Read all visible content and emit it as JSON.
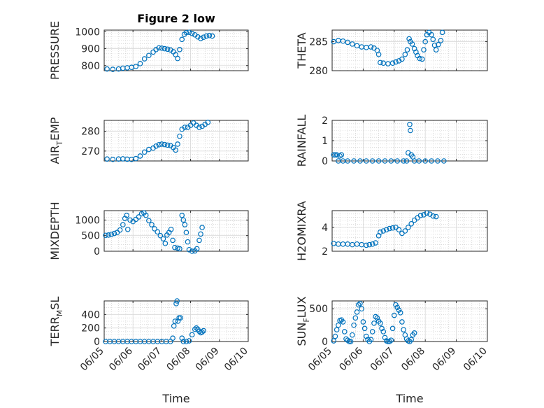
{
  "figure_title": "Figure 2 low",
  "colors": {
    "marker": "#0072BD",
    "axis": "#262626",
    "grid": "#c8c8c8",
    "background": "#ffffff"
  },
  "chart_data": [
    {
      "type": "scatter",
      "panel": "top-left",
      "ylabel_main": "PRESSURE",
      "ylabel_sub": "",
      "xlim": [
        "06/05",
        "06/10"
      ],
      "ylim": [
        770,
        1010
      ],
      "yticks": [
        800,
        900,
        1000
      ],
      "xtick_labels": [],
      "xlabel": "",
      "title": "Figure 2 low",
      "grid": "on",
      "points": [
        [
          5.1,
          780
        ],
        [
          5.3,
          778
        ],
        [
          5.5,
          780
        ],
        [
          5.65,
          785
        ],
        [
          5.8,
          787
        ],
        [
          5.95,
          790
        ],
        [
          6.1,
          795
        ],
        [
          6.25,
          812
        ],
        [
          6.4,
          840
        ],
        [
          6.55,
          860
        ],
        [
          6.7,
          880
        ],
        [
          6.8,
          895
        ],
        [
          6.9,
          905
        ],
        [
          7.0,
          903
        ],
        [
          7.1,
          900
        ],
        [
          7.2,
          897
        ],
        [
          7.3,
          893
        ],
        [
          7.4,
          882
        ],
        [
          7.48,
          865
        ],
        [
          7.55,
          842
        ],
        [
          7.62,
          895
        ],
        [
          7.7,
          955
        ],
        [
          7.78,
          985
        ],
        [
          7.85,
          995
        ],
        [
          7.95,
          997
        ],
        [
          8.05,
          990
        ],
        [
          8.15,
          982
        ],
        [
          8.25,
          970
        ],
        [
          8.35,
          960
        ],
        [
          8.45,
          968
        ],
        [
          8.55,
          975
        ],
        [
          8.65,
          978
        ],
        [
          8.75,
          975
        ]
      ]
    },
    {
      "type": "scatter",
      "panel": "top-right",
      "ylabel_main": "THETA",
      "ylabel_sub": "",
      "xlim": [
        "06/05",
        "06/10"
      ],
      "ylim": [
        280,
        287
      ],
      "yticks": [
        280,
        285
      ],
      "xtick_labels": [],
      "xlabel": "",
      "title": "",
      "grid": "on",
      "points": [
        [
          5.05,
          285.0
        ],
        [
          5.2,
          285.2
        ],
        [
          5.35,
          285.1
        ],
        [
          5.5,
          284.9
        ],
        [
          5.65,
          284.6
        ],
        [
          5.8,
          284.3
        ],
        [
          5.95,
          284.1
        ],
        [
          6.1,
          284.0
        ],
        [
          6.25,
          284.1
        ],
        [
          6.35,
          283.9
        ],
        [
          6.45,
          283.5
        ],
        [
          6.5,
          282.8
        ],
        [
          6.55,
          281.4
        ],
        [
          6.65,
          281.3
        ],
        [
          6.8,
          281.2
        ],
        [
          6.95,
          281.3
        ],
        [
          7.05,
          281.5
        ],
        [
          7.15,
          281.7
        ],
        [
          7.25,
          282.0
        ],
        [
          7.35,
          282.8
        ],
        [
          7.42,
          283.6
        ],
        [
          7.48,
          285.5
        ],
        [
          7.52,
          285.0
        ],
        [
          7.58,
          284.6
        ],
        [
          7.65,
          283.8
        ],
        [
          7.7,
          283.2
        ],
        [
          7.75,
          282.6
        ],
        [
          7.82,
          282.1
        ],
        [
          7.9,
          282.0
        ],
        [
          7.95,
          283.6
        ],
        [
          8.0,
          285.0
        ],
        [
          8.05,
          286.2
        ],
        [
          8.12,
          286.6
        ],
        [
          8.2,
          286.2
        ],
        [
          8.25,
          285.4
        ],
        [
          8.3,
          284.4
        ],
        [
          8.35,
          283.6
        ],
        [
          8.42,
          284.5
        ],
        [
          8.5,
          285.2
        ],
        [
          8.55,
          286.6
        ]
      ]
    },
    {
      "type": "scatter",
      "panel": "second-left",
      "ylabel_main": "AIR",
      "ylabel_sub": "T",
      "ylabel_tail": "EMP",
      "xlim": [
        "06/05",
        "06/10"
      ],
      "ylim": [
        265,
        285.5
      ],
      "yticks": [
        270,
        280
      ],
      "xtick_labels": [],
      "xlabel": "",
      "title": "",
      "grid": "on",
      "points": [
        [
          5.1,
          266.0
        ],
        [
          5.3,
          265.8
        ],
        [
          5.5,
          266.0
        ],
        [
          5.65,
          266.1
        ],
        [
          5.8,
          265.9
        ],
        [
          5.95,
          265.8
        ],
        [
          6.1,
          266.2
        ],
        [
          6.25,
          267.5
        ],
        [
          6.4,
          269.5
        ],
        [
          6.55,
          270.8
        ],
        [
          6.7,
          271.5
        ],
        [
          6.8,
          272.5
        ],
        [
          6.9,
          273.2
        ],
        [
          7.0,
          273.5
        ],
        [
          7.1,
          273.3
        ],
        [
          7.2,
          273.0
        ],
        [
          7.3,
          272.8
        ],
        [
          7.4,
          271.8
        ],
        [
          7.48,
          270.5
        ],
        [
          7.55,
          273.5
        ],
        [
          7.62,
          277.5
        ],
        [
          7.7,
          281.0
        ],
        [
          7.8,
          282.0
        ],
        [
          7.9,
          282.0
        ],
        [
          8.0,
          283.0
        ],
        [
          8.1,
          284.2
        ],
        [
          8.2,
          283.0
        ],
        [
          8.3,
          282.0
        ],
        [
          8.4,
          282.5
        ],
        [
          8.5,
          283.5
        ],
        [
          8.6,
          284.5
        ]
      ]
    },
    {
      "type": "scatter",
      "panel": "second-right",
      "ylabel_main": "RAINFALL",
      "ylabel_sub": "",
      "xlim": [
        "06/05",
        "06/10"
      ],
      "ylim": [
        0,
        2
      ],
      "yticks": [
        0,
        1,
        2
      ],
      "xtick_labels": [],
      "xlabel": "",
      "title": "",
      "grid": "on",
      "points": [
        [
          5.05,
          0.3
        ],
        [
          5.1,
          0.3
        ],
        [
          5.15,
          0.3
        ],
        [
          5.2,
          0.0
        ],
        [
          5.25,
          0.25
        ],
        [
          5.3,
          0.3
        ],
        [
          5.35,
          0.0
        ],
        [
          5.5,
          0.0
        ],
        [
          5.7,
          0.0
        ],
        [
          5.9,
          0.0
        ],
        [
          6.1,
          0.0
        ],
        [
          6.3,
          0.0
        ],
        [
          6.5,
          0.0
        ],
        [
          6.7,
          0.0
        ],
        [
          6.9,
          0.0
        ],
        [
          7.1,
          0.0
        ],
        [
          7.3,
          0.0
        ],
        [
          7.4,
          0.0
        ],
        [
          7.45,
          0.4
        ],
        [
          7.5,
          1.8
        ],
        [
          7.52,
          1.5
        ],
        [
          7.55,
          0.3
        ],
        [
          7.6,
          0.2
        ],
        [
          7.65,
          0.0
        ],
        [
          7.8,
          0.0
        ],
        [
          8.0,
          0.0
        ],
        [
          8.2,
          0.0
        ],
        [
          8.4,
          0.0
        ],
        [
          8.6,
          0.0
        ]
      ]
    },
    {
      "type": "scatter",
      "panel": "third-left",
      "ylabel_main": "MIXDEPTH",
      "ylabel_sub": "",
      "xlim": [
        "06/05",
        "06/10"
      ],
      "ylim": [
        0,
        1300
      ],
      "yticks": [
        0,
        500,
        1000
      ],
      "xtick_labels": [],
      "xlabel": "",
      "title": "",
      "grid": "on",
      "points": [
        [
          5.05,
          510
        ],
        [
          5.15,
          520
        ],
        [
          5.25,
          540
        ],
        [
          5.35,
          570
        ],
        [
          5.45,
          600
        ],
        [
          5.55,
          680
        ],
        [
          5.65,
          850
        ],
        [
          5.72,
          1050
        ],
        [
          5.78,
          1150
        ],
        [
          5.82,
          700
        ],
        [
          5.9,
          1000
        ],
        [
          6.0,
          950
        ],
        [
          6.1,
          1020
        ],
        [
          6.2,
          1100
        ],
        [
          6.3,
          1200
        ],
        [
          6.38,
          1230
        ],
        [
          6.45,
          1150
        ],
        [
          6.55,
          980
        ],
        [
          6.65,
          850
        ],
        [
          6.75,
          720
        ],
        [
          6.85,
          620
        ],
        [
          6.95,
          500
        ],
        [
          7.05,
          400
        ],
        [
          7.12,
          250
        ],
        [
          7.18,
          520
        ],
        [
          7.25,
          600
        ],
        [
          7.32,
          700
        ],
        [
          7.38,
          350
        ],
        [
          7.45,
          120
        ],
        [
          7.55,
          100
        ],
        [
          7.62,
          80
        ],
        [
          7.7,
          1150
        ],
        [
          7.75,
          1000
        ],
        [
          7.8,
          850
        ],
        [
          7.85,
          600
        ],
        [
          7.9,
          300
        ],
        [
          7.95,
          50
        ],
        [
          8.05,
          0
        ],
        [
          8.15,
          10
        ],
        [
          8.22,
          80
        ],
        [
          8.3,
          350
        ],
        [
          8.35,
          550
        ],
        [
          8.4,
          760
        ]
      ]
    },
    {
      "type": "scatter",
      "panel": "third-right",
      "ylabel_main": "H2OMIXRA",
      "ylabel_sub": "",
      "xlim": [
        "06/05",
        "06/10"
      ],
      "ylim": [
        2,
        5.4
      ],
      "yticks": [
        2,
        4
      ],
      "xtick_labels": [],
      "xlabel": "",
      "title": "",
      "grid": "on",
      "points": [
        [
          5.05,
          2.65
        ],
        [
          5.2,
          2.6
        ],
        [
          5.35,
          2.6
        ],
        [
          5.5,
          2.6
        ],
        [
          5.65,
          2.55
        ],
        [
          5.8,
          2.6
        ],
        [
          5.95,
          2.55
        ],
        [
          6.1,
          2.5
        ],
        [
          6.2,
          2.55
        ],
        [
          6.3,
          2.6
        ],
        [
          6.4,
          2.7
        ],
        [
          6.5,
          3.3
        ],
        [
          6.55,
          3.6
        ],
        [
          6.65,
          3.7
        ],
        [
          6.75,
          3.8
        ],
        [
          6.85,
          3.9
        ],
        [
          6.95,
          3.95
        ],
        [
          7.05,
          4.0
        ],
        [
          7.15,
          3.8
        ],
        [
          7.25,
          3.5
        ],
        [
          7.35,
          3.7
        ],
        [
          7.45,
          4.0
        ],
        [
          7.55,
          4.3
        ],
        [
          7.65,
          4.6
        ],
        [
          7.75,
          4.8
        ],
        [
          7.85,
          5.0
        ],
        [
          7.95,
          5.05
        ],
        [
          8.05,
          5.2
        ],
        [
          8.15,
          5.1
        ],
        [
          8.25,
          4.95
        ],
        [
          8.35,
          4.9
        ]
      ]
    },
    {
      "type": "scatter",
      "panel": "bottom-left",
      "ylabel_main": "TERR",
      "ylabel_sub": "M",
      "ylabel_tail": "SL",
      "xlim": [
        "06/05",
        "06/10"
      ],
      "ylim": [
        0,
        600
      ],
      "yticks": [
        0,
        200,
        400
      ],
      "xtick_labels": [
        "06/05",
        "06/06",
        "06/07",
        "06/08",
        "06/09",
        "06/10"
      ],
      "xlabel": "Time",
      "title": "",
      "grid": "on",
      "points": [
        [
          5.05,
          0
        ],
        [
          5.2,
          0
        ],
        [
          5.35,
          0
        ],
        [
          5.5,
          0
        ],
        [
          5.65,
          0
        ],
        [
          5.8,
          0
        ],
        [
          5.95,
          0
        ],
        [
          6.1,
          0
        ],
        [
          6.25,
          0
        ],
        [
          6.4,
          0
        ],
        [
          6.55,
          0
        ],
        [
          6.7,
          0
        ],
        [
          6.85,
          0
        ],
        [
          7.0,
          0
        ],
        [
          7.15,
          0
        ],
        [
          7.3,
          0
        ],
        [
          7.38,
          50
        ],
        [
          7.42,
          230
        ],
        [
          7.46,
          300
        ],
        [
          7.5,
          560
        ],
        [
          7.53,
          600
        ],
        [
          7.56,
          300
        ],
        [
          7.6,
          350
        ],
        [
          7.65,
          350
        ],
        [
          7.7,
          50
        ],
        [
          7.75,
          0
        ],
        [
          7.85,
          0
        ],
        [
          7.95,
          10
        ],
        [
          8.05,
          100
        ],
        [
          8.15,
          180
        ],
        [
          8.2,
          200
        ],
        [
          8.25,
          180
        ],
        [
          8.3,
          150
        ],
        [
          8.35,
          130
        ],
        [
          8.4,
          140
        ],
        [
          8.45,
          160
        ]
      ]
    },
    {
      "type": "scatter",
      "panel": "bottom-right",
      "ylabel_main": "SUN",
      "ylabel_sub": "F",
      "ylabel_tail": "LUX",
      "xlim": [
        "06/05",
        "06/10"
      ],
      "ylim": [
        0,
        620
      ],
      "yticks": [
        0,
        500
      ],
      "xtick_labels": [
        "06/05",
        "06/06",
        "06/07",
        "06/08",
        "06/09",
        "06/10"
      ],
      "xlabel": "Time",
      "title": "",
      "grid": "on",
      "points": [
        [
          5.05,
          10
        ],
        [
          5.1,
          80
        ],
        [
          5.15,
          180
        ],
        [
          5.2,
          250
        ],
        [
          5.25,
          320
        ],
        [
          5.3,
          330
        ],
        [
          5.35,
          300
        ],
        [
          5.4,
          150
        ],
        [
          5.45,
          40
        ],
        [
          5.5,
          20
        ],
        [
          5.55,
          0
        ],
        [
          5.6,
          0
        ],
        [
          5.65,
          100
        ],
        [
          5.7,
          250
        ],
        [
          5.75,
          360
        ],
        [
          5.8,
          450
        ],
        [
          5.85,
          560
        ],
        [
          5.9,
          580
        ],
        [
          5.95,
          500
        ],
        [
          6.0,
          300
        ],
        [
          6.05,
          200
        ],
        [
          6.1,
          80
        ],
        [
          6.15,
          30
        ],
        [
          6.2,
          0
        ],
        [
          6.25,
          30
        ],
        [
          6.3,
          150
        ],
        [
          6.35,
          280
        ],
        [
          6.4,
          380
        ],
        [
          6.45,
          360
        ],
        [
          6.5,
          310
        ],
        [
          6.55,
          280
        ],
        [
          6.6,
          200
        ],
        [
          6.65,
          150
        ],
        [
          6.7,
          60
        ],
        [
          6.75,
          10
        ],
        [
          6.8,
          0
        ],
        [
          6.85,
          0
        ],
        [
          6.9,
          20
        ],
        [
          6.95,
          200
        ],
        [
          7.0,
          400
        ],
        [
          7.05,
          560
        ],
        [
          7.1,
          520
        ],
        [
          7.15,
          480
        ],
        [
          7.2,
          440
        ],
        [
          7.25,
          300
        ],
        [
          7.3,
          180
        ],
        [
          7.35,
          100
        ],
        [
          7.4,
          40
        ],
        [
          7.45,
          10
        ],
        [
          7.5,
          0
        ],
        [
          7.55,
          30
        ],
        [
          7.6,
          100
        ],
        [
          7.65,
          130
        ]
      ]
    }
  ]
}
